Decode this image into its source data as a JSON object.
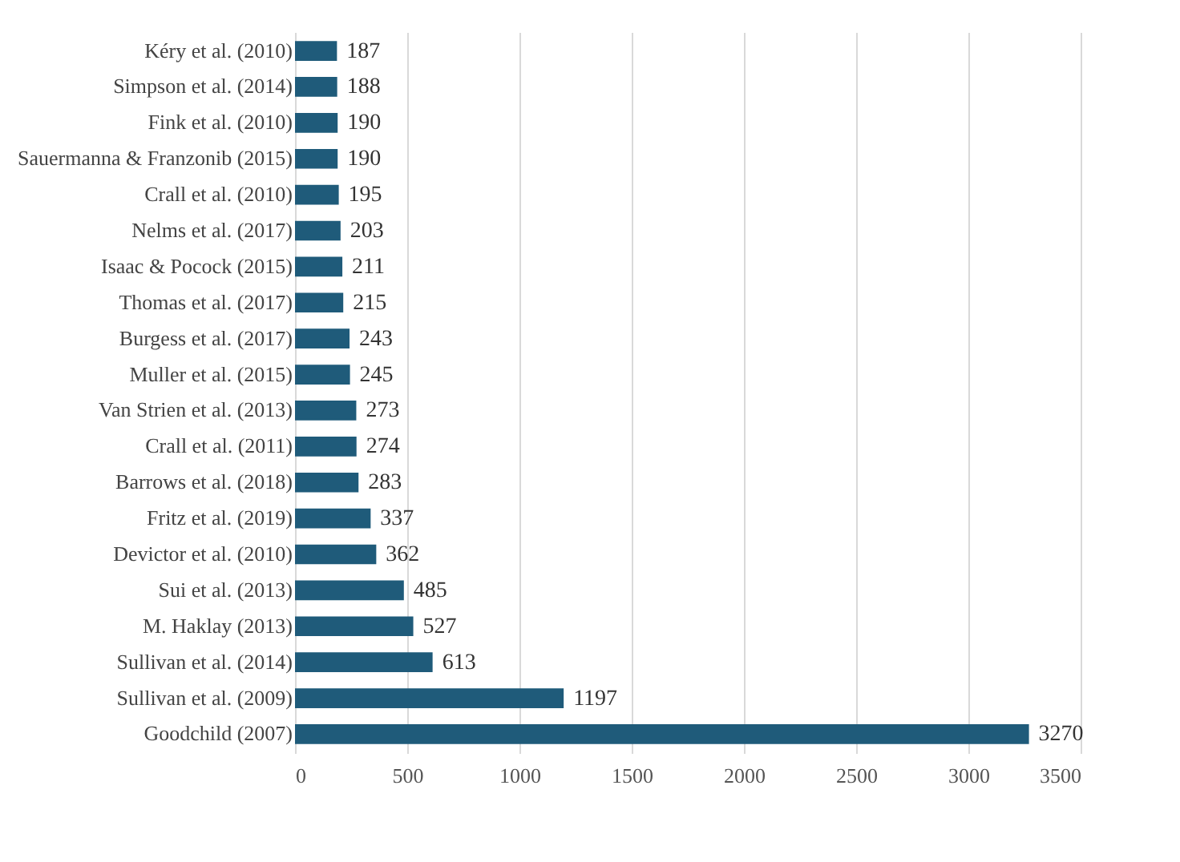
{
  "chart_data": {
    "type": "bar",
    "orientation": "horizontal",
    "categories": [
      "Kéry et al. (2010)",
      "Simpson et al. (2014)",
      "Fink et al. (2010)",
      "Sauermanna & Franzonib (2015)",
      "Crall et al. (2010)",
      "Nelms et al. (2017)",
      "Isaac & Pocock (2015)",
      "Thomas et al. (2017)",
      "Burgess et al. (2017)",
      "Muller et al. (2015)",
      "Van Strien et al. (2013)",
      "Crall et al. (2011)",
      "Barrows et al. (2018)",
      "Fritz et al. (2019)",
      "Devictor et al. (2010)",
      "Sui et al. (2013)",
      "M. Haklay (2013)",
      "Sullivan et al. (2014)",
      "Sullivan et al. (2009)",
      "Goodchild (2007)"
    ],
    "values": [
      187,
      188,
      190,
      190,
      195,
      203,
      211,
      215,
      243,
      245,
      273,
      274,
      283,
      337,
      362,
      485,
      527,
      613,
      1197,
      3270
    ],
    "color": "#1f5b7a",
    "xlim": [
      0,
      3500
    ],
    "xticks": [
      0,
      500,
      1000,
      1500,
      2000,
      2500,
      3000,
      3500
    ],
    "grid": "x",
    "data_labels": true
  }
}
